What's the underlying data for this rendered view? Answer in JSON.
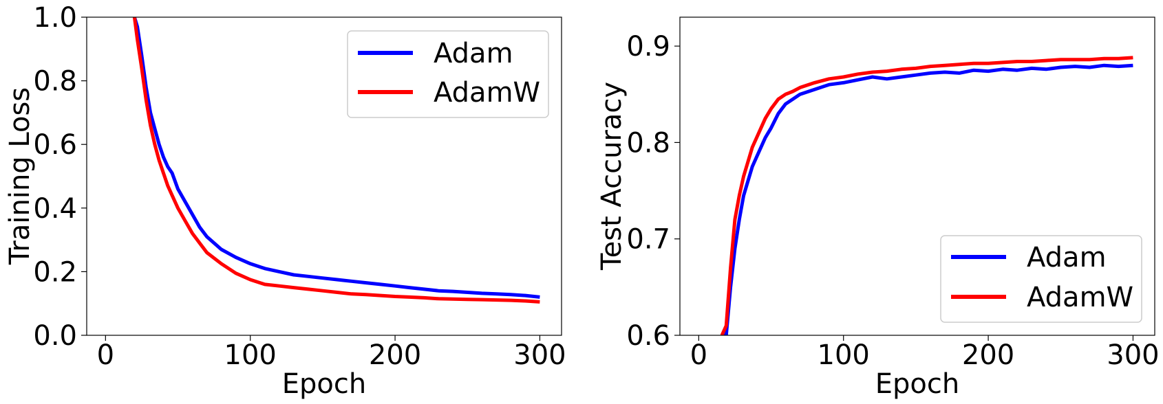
{
  "chart_data": [
    {
      "type": "line",
      "title": "",
      "xlabel": "Epoch",
      "ylabel": "Training Loss",
      "xlim": [
        -13,
        315
      ],
      "ylim": [
        0,
        1.0
      ],
      "xticks": [
        0,
        100,
        200,
        300
      ],
      "yticks": [
        0.0,
        0.2,
        0.4,
        0.6,
        0.8,
        1.0
      ],
      "ytick_labels": [
        "0.0",
        "0.2",
        "0.4",
        "0.6",
        "0.8",
        "1.0"
      ],
      "grid": false,
      "legend_position": "upper right",
      "x": [
        20,
        22,
        25,
        28,
        31,
        34,
        37,
        40,
        43,
        46,
        50,
        55,
        60,
        65,
        70,
        80,
        90,
        100,
        110,
        120,
        130,
        140,
        150,
        160,
        170,
        180,
        190,
        200,
        210,
        220,
        230,
        240,
        250,
        260,
        270,
        280,
        290,
        300
      ],
      "series": [
        {
          "name": "Adam",
          "color": "#0000ff",
          "values": [
            1.0,
            0.97,
            0.88,
            0.78,
            0.7,
            0.65,
            0.6,
            0.56,
            0.53,
            0.51,
            0.46,
            0.42,
            0.38,
            0.34,
            0.31,
            0.27,
            0.245,
            0.225,
            0.21,
            0.2,
            0.19,
            0.185,
            0.18,
            0.175,
            0.17,
            0.165,
            0.16,
            0.155,
            0.15,
            0.145,
            0.14,
            0.138,
            0.135,
            0.132,
            0.13,
            0.128,
            0.125,
            0.12
          ]
        },
        {
          "name": "AdamW",
          "color": "#ff0000",
          "values": [
            1.0,
            0.93,
            0.84,
            0.74,
            0.66,
            0.6,
            0.55,
            0.51,
            0.47,
            0.44,
            0.4,
            0.36,
            0.32,
            0.29,
            0.26,
            0.225,
            0.195,
            0.175,
            0.16,
            0.155,
            0.15,
            0.145,
            0.14,
            0.135,
            0.13,
            0.128,
            0.125,
            0.122,
            0.12,
            0.118,
            0.115,
            0.114,
            0.113,
            0.112,
            0.111,
            0.11,
            0.108,
            0.105
          ]
        }
      ]
    },
    {
      "type": "line",
      "title": "",
      "xlabel": "Epoch",
      "ylabel": "Test Accuracy",
      "xlim": [
        -13,
        315
      ],
      "ylim": [
        0.6,
        0.93
      ],
      "xticks": [
        0,
        100,
        200,
        300
      ],
      "yticks": [
        0.6,
        0.7,
        0.8,
        0.9
      ],
      "ytick_labels": [
        "0.6",
        "0.7",
        "0.8",
        "0.9"
      ],
      "grid": false,
      "legend_position": "lower right",
      "x": [
        16,
        19,
        22,
        25,
        28,
        31,
        34,
        37,
        40,
        43,
        46,
        50,
        55,
        60,
        65,
        70,
        80,
        90,
        100,
        110,
        120,
        130,
        140,
        150,
        160,
        170,
        180,
        190,
        200,
        210,
        220,
        230,
        240,
        250,
        260,
        270,
        280,
        290,
        300
      ],
      "series": [
        {
          "name": "Adam",
          "color": "#0000ff",
          "values": [
            0.6,
            0.6,
            0.65,
            0.69,
            0.72,
            0.745,
            0.76,
            0.775,
            0.785,
            0.795,
            0.805,
            0.815,
            0.83,
            0.84,
            0.845,
            0.85,
            0.855,
            0.86,
            0.862,
            0.865,
            0.868,
            0.866,
            0.868,
            0.87,
            0.872,
            0.873,
            0.872,
            0.875,
            0.874,
            0.876,
            0.875,
            0.877,
            0.876,
            0.878,
            0.879,
            0.878,
            0.88,
            0.879,
            0.88
          ]
        },
        {
          "name": "AdamW",
          "color": "#ff0000",
          "values": [
            0.6,
            0.61,
            0.67,
            0.72,
            0.745,
            0.765,
            0.78,
            0.795,
            0.805,
            0.815,
            0.825,
            0.835,
            0.845,
            0.85,
            0.853,
            0.857,
            0.862,
            0.866,
            0.868,
            0.871,
            0.873,
            0.874,
            0.876,
            0.877,
            0.879,
            0.88,
            0.881,
            0.882,
            0.882,
            0.883,
            0.884,
            0.884,
            0.885,
            0.886,
            0.886,
            0.886,
            0.887,
            0.887,
            0.888
          ]
        }
      ]
    }
  ]
}
